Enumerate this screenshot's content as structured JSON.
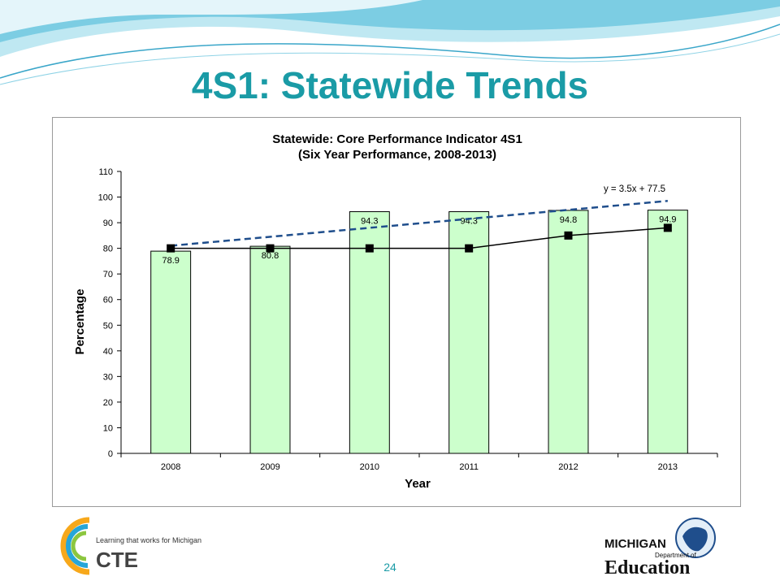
{
  "slide": {
    "title": "4S1: Statewide Trends",
    "page_number": "24"
  },
  "logos": {
    "cte_tagline": "Learning that works for Michigan",
    "cte_name": "CTE",
    "mde_line1": "MICHIGAN",
    "mde_line2": "Department of",
    "mde_line3": "Education"
  },
  "colors": {
    "title": "#1a9ba6",
    "bar_fill": "#ccffcc",
    "bar_stroke": "#000000",
    "line": "#000000",
    "trend": "#1f4e8c"
  },
  "chart_data": {
    "type": "bar",
    "title": "Statewide: Core Performance Indicator 4S1",
    "subtitle": "(Six Year Performance, 2008-2013)",
    "xlabel": "Year",
    "ylabel": "Percentage",
    "ylim": [
      0,
      110
    ],
    "yticks": [
      0,
      10,
      20,
      30,
      40,
      50,
      60,
      70,
      80,
      90,
      100,
      110
    ],
    "categories": [
      "2008",
      "2009",
      "2010",
      "2011",
      "2012",
      "2013"
    ],
    "series": [
      {
        "kind": "bar",
        "values": [
          78.9,
          80.8,
          94.3,
          94.3,
          94.8,
          94.9
        ],
        "data_labels": [
          "78.9",
          "80.8",
          "94.3",
          "94.3",
          "94.8",
          "94.9"
        ]
      },
      {
        "kind": "line",
        "marker": "square",
        "values": [
          80,
          80,
          80,
          80,
          85,
          88
        ]
      },
      {
        "kind": "trendline",
        "style": "dashed",
        "equation": "y = 3.5x + 77.5",
        "values": [
          81,
          84.5,
          88,
          91.5,
          95,
          98.5
        ]
      }
    ],
    "grid": false,
    "legend": "none"
  }
}
